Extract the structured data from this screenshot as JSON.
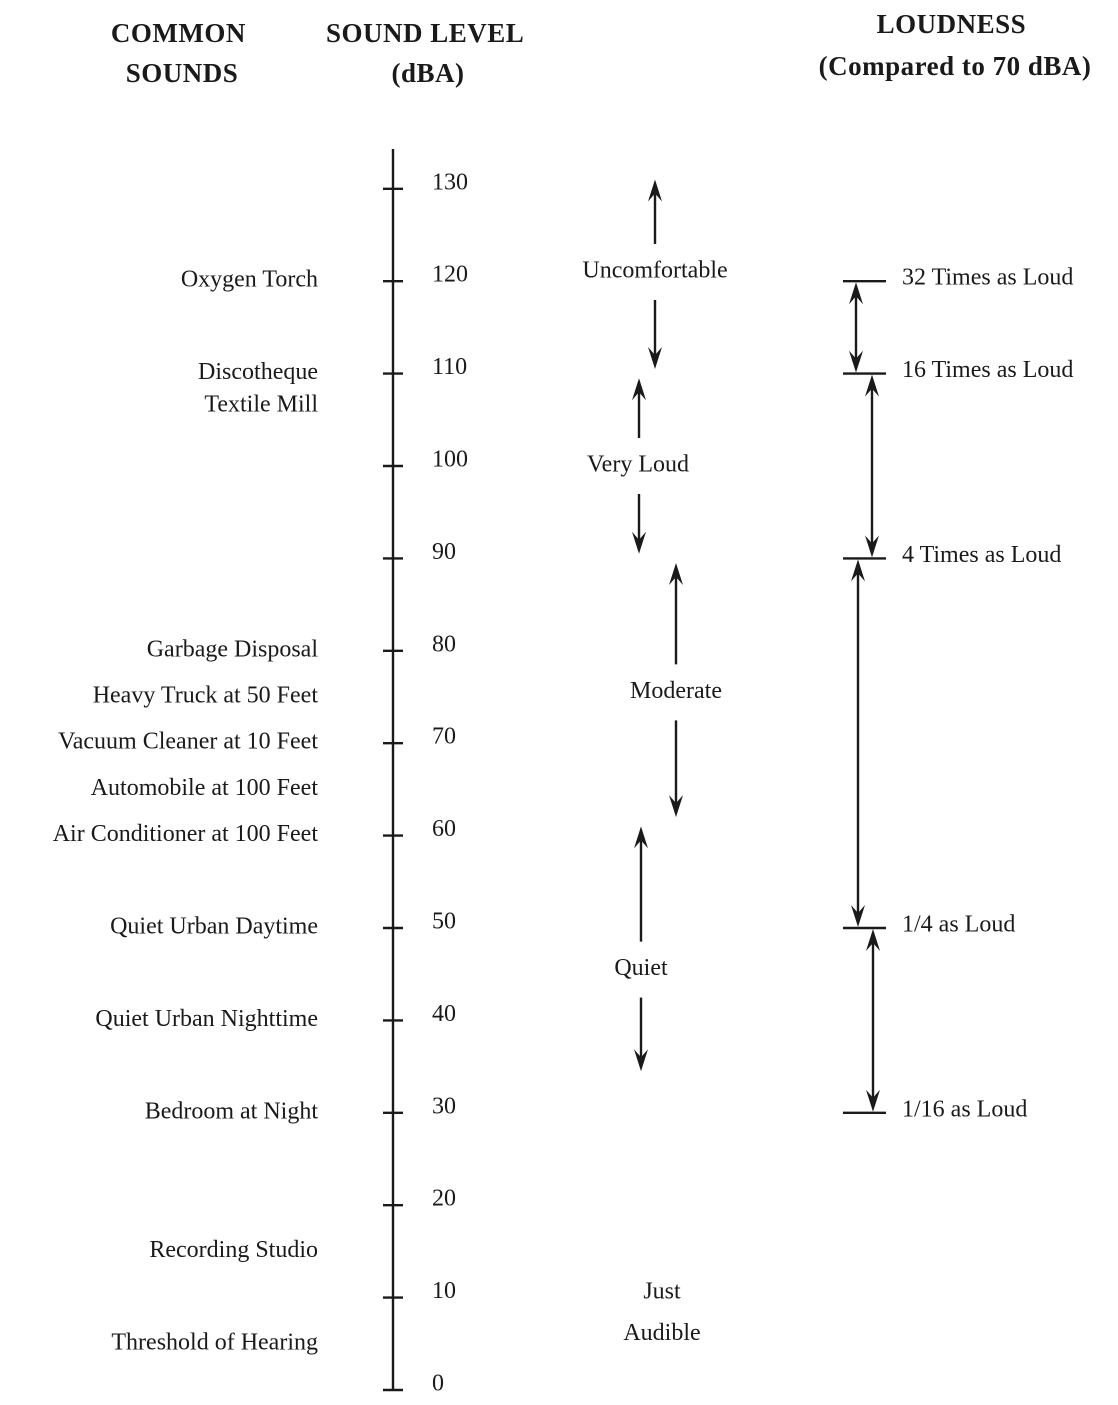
{
  "headers": {
    "common_sounds": [
      "COMMON",
      "SOUNDS"
    ],
    "sound_level": [
      "SOUND LEVEL",
      "(dBA)"
    ],
    "loudness": [
      "LOUDNESS",
      "(Compared to 70 dBA)"
    ]
  },
  "scale": {
    "min": 0,
    "max": 130,
    "ticks": [
      130,
      120,
      110,
      100,
      90,
      80,
      70,
      60,
      50,
      40,
      30,
      20,
      10,
      0
    ]
  },
  "common_sounds": [
    {
      "label": "Oxygen Torch",
      "db": 120
    },
    {
      "label": "Discotheque",
      "db": 110
    },
    {
      "label": "Textile Mill",
      "db": 106.5
    },
    {
      "label": "Garbage Disposal",
      "db": 80
    },
    {
      "label": "Heavy Truck at 50 Feet",
      "db": 75
    },
    {
      "label": "Vacuum Cleaner at 10 Feet",
      "db": 70
    },
    {
      "label": "Automobile at 100 Feet",
      "db": 65
    },
    {
      "label": "Air Conditioner at 100 Feet",
      "db": 60
    },
    {
      "label": "Quiet Urban Daytime",
      "db": 50
    },
    {
      "label": "Quiet Urban Nighttime",
      "db": 40
    },
    {
      "label": "Bedroom at Night",
      "db": 30
    },
    {
      "label": "Recording Studio",
      "db": 15
    },
    {
      "label": "Threshold of Hearing",
      "db": 5
    }
  ],
  "categories": [
    {
      "label": "Uncomfortable",
      "label_db": 121,
      "top_db": 131,
      "bottom_db": 110.5
    },
    {
      "label": "Very Loud",
      "label_db": 100,
      "top_db": 109.5,
      "bottom_db": 90.5
    },
    {
      "label": "Moderate",
      "label_db": 75.5,
      "top_db": 89.5,
      "bottom_db": 62
    },
    {
      "label": "Quiet",
      "label_db": 45.5,
      "top_db": 61,
      "bottom_db": 34.5
    },
    {
      "label": "Just",
      "label_db": 10.5,
      "top_db": null,
      "bottom_db": null
    },
    {
      "label": "Audible",
      "label_db": 6
    }
  ],
  "loudness_levels": [
    {
      "label": "32 Times as Loud",
      "db": 120
    },
    {
      "label": "16 Times as Loud",
      "db": 110
    },
    {
      "label": "4 Times as Loud",
      "db": 90
    },
    {
      "label": "1/4 as Loud",
      "db": 50
    },
    {
      "label": "1/16 as Loud",
      "db": 30
    }
  ],
  "colors": {
    "ink": "#1a1a1a",
    "background": "#ffffff"
  }
}
